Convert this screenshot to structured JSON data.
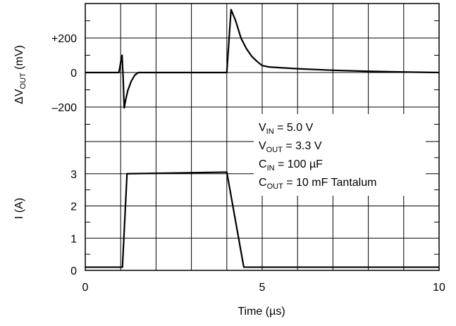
{
  "chart_data": [
    {
      "type": "line",
      "panel": "top",
      "xlabel": "Time (µs)",
      "ylabel": {
        "delta": "Δ",
        "v": "V",
        "sub": "OUT",
        "unit": " (mV)"
      },
      "xlim": [
        0,
        10
      ],
      "ylim": [
        -400,
        400
      ],
      "ytick_labels": [
        {
          "v": 200,
          "label": "+200"
        },
        {
          "v": 0,
          "label": "0"
        },
        {
          "v": -200,
          "label": "–200"
        }
      ],
      "series": [
        {
          "x": [
            0,
            0.95,
            1.02,
            1.04,
            1.07,
            1.1,
            1.14,
            1.2,
            1.3,
            1.4,
            1.5,
            4.0,
            4.12,
            4.25,
            4.4,
            4.55,
            4.7,
            4.85,
            5.0,
            5.2,
            5.5,
            6.0,
            7.0,
            8.0,
            9.0,
            10.0
          ],
          "y": [
            0,
            0,
            80,
            100,
            -30,
            -205,
            -160,
            -105,
            -50,
            -15,
            0,
            0,
            365,
            300,
            200,
            140,
            95,
            65,
            40,
            32,
            28,
            22,
            13,
            7,
            3,
            0
          ]
        }
      ]
    },
    {
      "type": "line",
      "panel": "bottom",
      "xlabel": "Time (µs)",
      "ylabel": "I (A)",
      "xlim": [
        0,
        10
      ],
      "ylim": [
        0,
        4
      ],
      "ytick_labels": [
        {
          "v": 3,
          "label": "3"
        },
        {
          "v": 2,
          "label": "2"
        },
        {
          "v": 1,
          "label": "1"
        },
        {
          "v": 0,
          "label": "0"
        }
      ],
      "xtick_labels": [
        {
          "v": 0,
          "label": "0"
        },
        {
          "v": 5,
          "label": "5"
        },
        {
          "v": 10,
          "label": "10"
        }
      ],
      "series": [
        {
          "x": [
            0,
            1.05,
            1.18,
            4.0,
            4.48,
            10.0
          ],
          "y": [
            0.1,
            0.1,
            3.0,
            3.05,
            0.1,
            0.1
          ]
        }
      ]
    }
  ],
  "annotations": [
    {
      "main": "V",
      "sub": "IN",
      "rest": " = 5.0 V"
    },
    {
      "main": "V",
      "sub": "OUT",
      "rest": " = 3.3 V"
    },
    {
      "main": "C",
      "sub": "IN",
      "rest": " = 100 µF"
    },
    {
      "main": "C",
      "sub": "OUT",
      "rest": " = 10 mF Tantalum"
    }
  ]
}
